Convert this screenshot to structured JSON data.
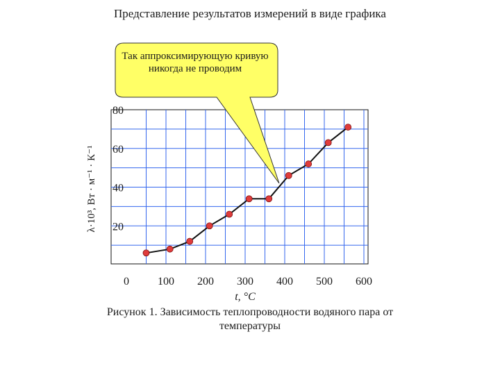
{
  "title": "Представление результатов измерений в виде графика",
  "callout": {
    "text": "Так аппроксимирующую кривую никогда не проводим",
    "fill": "#ffff66"
  },
  "caption": "Рисунок 1. Зависимость теплопроводности водяного пара от температуры",
  "colors": {
    "grid": "#3366ee",
    "marker": "#e03c3c",
    "line": "#111111",
    "plot_bg": "#ffffff"
  },
  "chart_data": {
    "type": "line",
    "title": "",
    "xlabel": "t, °C",
    "ylabel": "λ·10³, Вт · м⁻¹ · К⁻¹",
    "xlim": [
      0,
      600
    ],
    "ylim": [
      0,
      80
    ],
    "x_ticks": [
      0,
      100,
      200,
      300,
      400,
      500,
      600
    ],
    "y_ticks": [
      20,
      40,
      60,
      80
    ],
    "grid": true,
    "series": [
      {
        "x": [
          50,
          110,
          160,
          210,
          260,
          310,
          360,
          410,
          460,
          510,
          560
        ],
        "y": [
          6,
          8,
          12,
          20,
          26,
          34,
          34,
          46,
          52,
          63,
          71
        ]
      }
    ]
  }
}
